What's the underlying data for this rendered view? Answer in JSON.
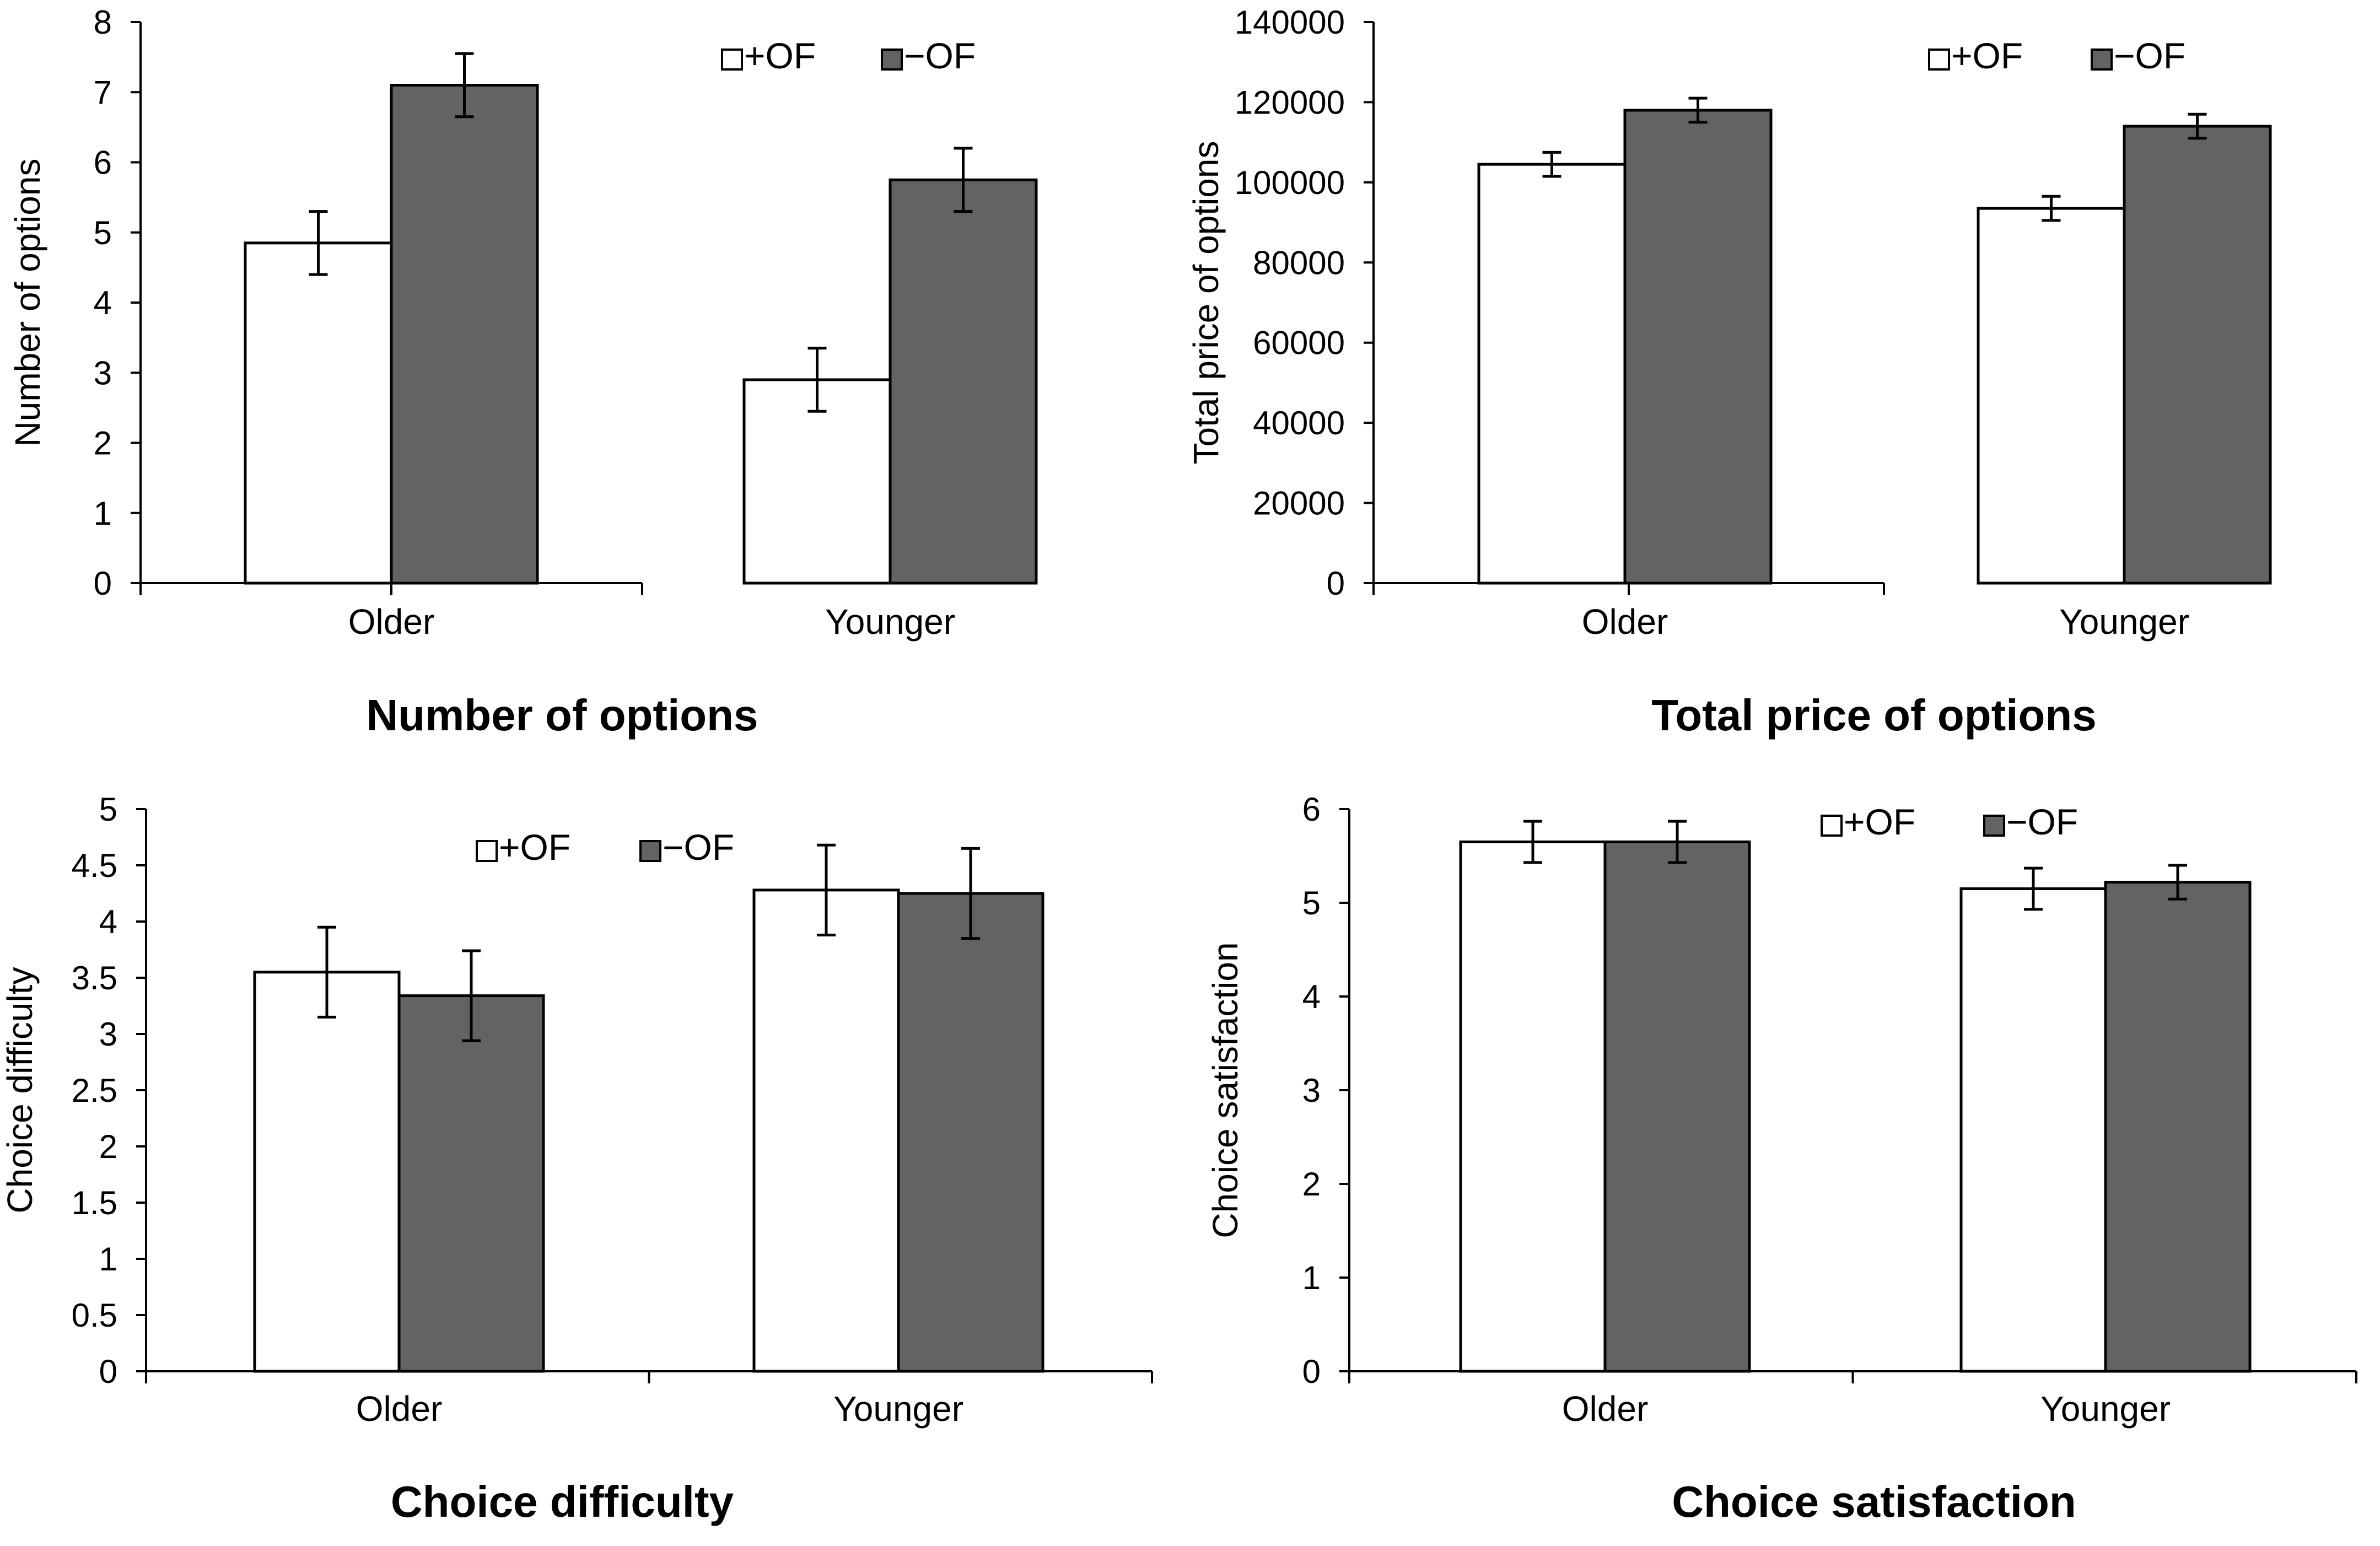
{
  "colors": {
    "plus_of": "#ffffff",
    "minus_of": "#636363",
    "stroke": "#000000"
  },
  "chart_data": [
    {
      "type": "bar",
      "title": "Number of options",
      "xlabel": "",
      "ylabel": "Number of options",
      "ylim": [
        0,
        8
      ],
      "ytick_step": 1,
      "yticks": [
        "0",
        "1",
        "2",
        "3",
        "4",
        "5",
        "6",
        "7",
        "8"
      ],
      "categories": [
        "Older",
        "Younger"
      ],
      "legend": [
        "+OF",
        "−OF"
      ],
      "series": [
        {
          "name": "+OF",
          "values": [
            4.85,
            2.9
          ],
          "errors": [
            0.45,
            0.45
          ]
        },
        {
          "name": "−OF",
          "values": [
            7.1,
            5.75
          ],
          "errors": [
            0.45,
            0.45
          ]
        }
      ]
    },
    {
      "type": "bar",
      "title": "Total price of options",
      "xlabel": "",
      "ylabel": "Total price of options",
      "ylim": [
        0,
        140000
      ],
      "ytick_step": 20000,
      "yticks": [
        "0",
        "20000",
        "40000",
        "60000",
        "80000",
        "100000",
        "120000",
        "140000"
      ],
      "categories": [
        "Older",
        "Younger"
      ],
      "legend": [
        "+OF",
        "−OF"
      ],
      "series": [
        {
          "name": "+OF",
          "values": [
            104500,
            93500
          ],
          "errors": [
            3000,
            3000
          ]
        },
        {
          "name": "−OF",
          "values": [
            118000,
            114000
          ],
          "errors": [
            3000,
            3000
          ]
        }
      ]
    },
    {
      "type": "bar",
      "title": "Choice difficulty",
      "xlabel": "",
      "ylabel": "Choice difficulty",
      "ylim": [
        0,
        5
      ],
      "ytick_step": 0.5,
      "yticks": [
        "0",
        "0.5",
        "1",
        "1.5",
        "2",
        "2.5",
        "3",
        "3.5",
        "4",
        "4.5",
        "5"
      ],
      "categories": [
        "Older",
        "Younger"
      ],
      "legend": [
        "+OF",
        "−OF"
      ],
      "series": [
        {
          "name": "+OF",
          "values": [
            3.55,
            4.28
          ],
          "errors": [
            0.4,
            0.4
          ]
        },
        {
          "name": "−OF",
          "values": [
            3.34,
            4.25
          ],
          "errors": [
            0.4,
            0.4
          ]
        }
      ]
    },
    {
      "type": "bar",
      "title": "Choice satisfaction",
      "xlabel": "",
      "ylabel": "Choice satisfaction",
      "ylim": [
        0,
        6
      ],
      "ytick_step": 1,
      "yticks": [
        "0",
        "1",
        "2",
        "3",
        "4",
        "5",
        "6"
      ],
      "categories": [
        "Older",
        "Younger"
      ],
      "legend": [
        "+OF",
        "−OF"
      ],
      "series": [
        {
          "name": "+OF",
          "values": [
            5.65,
            5.15
          ],
          "errors": [
            0.22,
            0.22
          ]
        },
        {
          "name": "−OF",
          "values": [
            5.65,
            5.22
          ],
          "errors": [
            0.22,
            0.18
          ]
        }
      ]
    }
  ]
}
